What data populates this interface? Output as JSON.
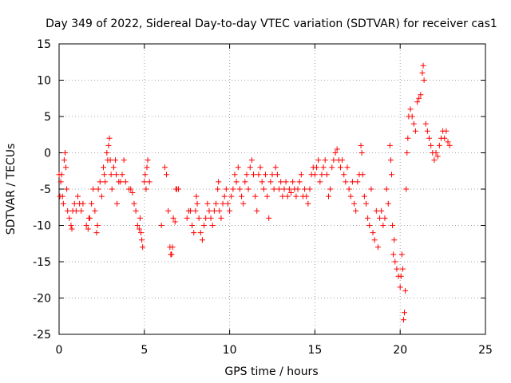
{
  "chart_data": {
    "type": "scatter",
    "title": "Day 349 of 2022, Sidereal Day-to-day VTEC variation (SDTVAR) for receiver cas1",
    "xlabel": "GPS time / hours",
    "ylabel": "SDTVAR / TECUs",
    "xlim": [
      0,
      25
    ],
    "ylim": [
      -25,
      15
    ],
    "xticks": [
      "0",
      "5",
      "10",
      "15",
      "20",
      "25"
    ],
    "yticks": [
      "15",
      "10",
      "5",
      "0",
      "-5",
      "-10",
      "-15",
      "-20",
      "-25"
    ],
    "grid": true,
    "marker": "+",
    "color": "#ff0000",
    "series": [
      {
        "name": "SDTVAR",
        "points": [
          [
            0.0,
            -3
          ],
          [
            0.05,
            -6
          ],
          [
            0.1,
            -4
          ],
          [
            0.15,
            -3
          ],
          [
            0.2,
            -6
          ],
          [
            0.25,
            -7
          ],
          [
            0.3,
            -1
          ],
          [
            0.35,
            0
          ],
          [
            0.4,
            -2
          ],
          [
            0.45,
            -5
          ],
          [
            0.5,
            -8
          ],
          [
            0.6,
            -9
          ],
          [
            0.7,
            -10
          ],
          [
            0.75,
            -10.5
          ],
          [
            0.8,
            -8
          ],
          [
            0.9,
            -7
          ],
          [
            1.0,
            -8
          ],
          [
            1.1,
            -6
          ],
          [
            1.2,
            -7
          ],
          [
            1.3,
            -8
          ],
          [
            1.4,
            -7
          ],
          [
            1.6,
            -10
          ],
          [
            1.7,
            -10.5
          ],
          [
            1.75,
            -9
          ],
          [
            1.8,
            -9
          ],
          [
            1.9,
            -7
          ],
          [
            2.0,
            -5
          ],
          [
            2.1,
            -8
          ],
          [
            2.2,
            -11
          ],
          [
            2.25,
            -10
          ],
          [
            2.3,
            -5
          ],
          [
            2.4,
            -4
          ],
          [
            2.5,
            -6
          ],
          [
            2.6,
            -2
          ],
          [
            2.65,
            -3
          ],
          [
            2.7,
            -4
          ],
          [
            2.8,
            0
          ],
          [
            2.85,
            -1
          ],
          [
            2.9,
            1
          ],
          [
            2.95,
            2
          ],
          [
            3.0,
            -1
          ],
          [
            3.05,
            -3
          ],
          [
            3.1,
            -5
          ],
          [
            3.2,
            -2
          ],
          [
            3.3,
            -1
          ],
          [
            3.35,
            -3
          ],
          [
            3.4,
            -7
          ],
          [
            3.5,
            -4
          ],
          [
            3.6,
            -4
          ],
          [
            3.7,
            -3
          ],
          [
            3.8,
            -1
          ],
          [
            3.9,
            -4
          ],
          [
            4.1,
            -5
          ],
          [
            4.2,
            -5
          ],
          [
            4.3,
            -5.5
          ],
          [
            4.4,
            -7
          ],
          [
            4.5,
            -8
          ],
          [
            4.6,
            -10
          ],
          [
            4.7,
            -10.5
          ],
          [
            4.75,
            -9
          ],
          [
            4.8,
            -11
          ],
          [
            4.85,
            -12
          ],
          [
            4.9,
            -13
          ],
          [
            5.0,
            -4
          ],
          [
            5.05,
            -3
          ],
          [
            5.1,
            -5
          ],
          [
            5.15,
            -2
          ],
          [
            5.2,
            -1
          ],
          [
            5.3,
            -4
          ],
          [
            6.0,
            -10
          ],
          [
            6.2,
            -2
          ],
          [
            6.3,
            -3
          ],
          [
            6.4,
            -8
          ],
          [
            6.5,
            -13
          ],
          [
            6.55,
            -14
          ],
          [
            6.6,
            -14
          ],
          [
            6.65,
            -13
          ],
          [
            6.7,
            -9
          ],
          [
            6.8,
            -9.5
          ],
          [
            6.85,
            -5
          ],
          [
            6.9,
            -5
          ],
          [
            7.0,
            -5
          ],
          [
            7.5,
            -9
          ],
          [
            7.6,
            -8
          ],
          [
            7.7,
            -8
          ],
          [
            7.8,
            -10
          ],
          [
            7.9,
            -11
          ],
          [
            8.0,
            -8
          ],
          [
            8.05,
            -6
          ],
          [
            8.1,
            -7
          ],
          [
            8.2,
            -9
          ],
          [
            8.3,
            -11
          ],
          [
            8.4,
            -12
          ],
          [
            8.5,
            -10
          ],
          [
            8.6,
            -9
          ],
          [
            8.7,
            -7
          ],
          [
            8.8,
            -8
          ],
          [
            8.9,
            -9
          ],
          [
            9.0,
            -10
          ],
          [
            9.1,
            -8
          ],
          [
            9.2,
            -7
          ],
          [
            9.3,
            -5
          ],
          [
            9.35,
            -4
          ],
          [
            9.4,
            -8
          ],
          [
            9.5,
            -9
          ],
          [
            9.6,
            -7
          ],
          [
            9.7,
            -6
          ],
          [
            9.8,
            -5
          ],
          [
            9.9,
            -7
          ],
          [
            10.0,
            -8
          ],
          [
            10.1,
            -6
          ],
          [
            10.2,
            -5
          ],
          [
            10.3,
            -3
          ],
          [
            10.4,
            -4
          ],
          [
            10.5,
            -2
          ],
          [
            10.6,
            -5
          ],
          [
            10.7,
            -6
          ],
          [
            10.8,
            -7
          ],
          [
            10.9,
            -4
          ],
          [
            11.0,
            -3
          ],
          [
            11.1,
            -5
          ],
          [
            11.2,
            -2
          ],
          [
            11.3,
            -1
          ],
          [
            11.4,
            -3
          ],
          [
            11.5,
            -6
          ],
          [
            11.6,
            -8
          ],
          [
            11.7,
            -3
          ],
          [
            11.8,
            -2
          ],
          [
            11.9,
            -4
          ],
          [
            12.0,
            -5
          ],
          [
            12.1,
            -3
          ],
          [
            12.2,
            -6
          ],
          [
            12.3,
            -9
          ],
          [
            12.4,
            -4
          ],
          [
            12.5,
            -3
          ],
          [
            12.6,
            -5
          ],
          [
            12.7,
            -2
          ],
          [
            12.8,
            -3
          ],
          [
            12.9,
            -5
          ],
          [
            13.0,
            -4
          ],
          [
            13.1,
            -6
          ],
          [
            13.2,
            -5
          ],
          [
            13.3,
            -4
          ],
          [
            13.4,
            -6
          ],
          [
            13.5,
            -5
          ],
          [
            13.6,
            -5.5
          ],
          [
            13.7,
            -4
          ],
          [
            13.8,
            -5
          ],
          [
            13.9,
            -6
          ],
          [
            14.0,
            -5
          ],
          [
            14.1,
            -4
          ],
          [
            14.2,
            -3
          ],
          [
            14.3,
            -6
          ],
          [
            14.4,
            -5
          ],
          [
            14.5,
            -6
          ],
          [
            14.6,
            -7
          ],
          [
            14.7,
            -5
          ],
          [
            14.8,
            -3
          ],
          [
            14.9,
            -2
          ],
          [
            15.0,
            -3
          ],
          [
            15.1,
            -2
          ],
          [
            15.2,
            -1
          ],
          [
            15.3,
            -4
          ],
          [
            15.4,
            -3
          ],
          [
            15.5,
            -2
          ],
          [
            15.6,
            -1
          ],
          [
            15.7,
            -3
          ],
          [
            15.8,
            -6
          ],
          [
            15.9,
            -5
          ],
          [
            16.0,
            -2
          ],
          [
            16.1,
            -1
          ],
          [
            16.2,
            0
          ],
          [
            16.3,
            0.5
          ],
          [
            16.4,
            -1
          ],
          [
            16.5,
            -2
          ],
          [
            16.6,
            -1
          ],
          [
            16.7,
            -3
          ],
          [
            16.8,
            -4
          ],
          [
            16.9,
            -2
          ],
          [
            17.0,
            -5
          ],
          [
            17.1,
            -6
          ],
          [
            17.2,
            -4
          ],
          [
            17.3,
            -7
          ],
          [
            17.4,
            -8
          ],
          [
            17.5,
            -4
          ],
          [
            17.6,
            -3
          ],
          [
            17.7,
            1
          ],
          [
            17.75,
            0
          ],
          [
            17.8,
            -3
          ],
          [
            17.9,
            -6
          ],
          [
            18.0,
            -7
          ],
          [
            18.1,
            -9
          ],
          [
            18.2,
            -10
          ],
          [
            18.3,
            -5
          ],
          [
            18.4,
            -11
          ],
          [
            18.5,
            -12
          ],
          [
            18.6,
            -8
          ],
          [
            18.7,
            -13
          ],
          [
            18.8,
            -9
          ],
          [
            18.9,
            -8
          ],
          [
            19.0,
            -10
          ],
          [
            19.1,
            -9
          ],
          [
            19.2,
            -5
          ],
          [
            19.3,
            -7
          ],
          [
            19.4,
            1
          ],
          [
            19.45,
            -1
          ],
          [
            19.5,
            -3
          ],
          [
            19.55,
            -10
          ],
          [
            19.6,
            -14
          ],
          [
            19.65,
            -12
          ],
          [
            19.7,
            -15
          ],
          [
            19.8,
            -16
          ],
          [
            19.9,
            -17
          ],
          [
            20.0,
            -18.5
          ],
          [
            20.05,
            -17
          ],
          [
            20.1,
            -14
          ],
          [
            20.15,
            -16
          ],
          [
            20.2,
            -23
          ],
          [
            20.25,
            -22
          ],
          [
            20.3,
            -19
          ],
          [
            20.35,
            -5
          ],
          [
            20.4,
            0
          ],
          [
            20.45,
            2
          ],
          [
            20.5,
            5
          ],
          [
            20.6,
            6
          ],
          [
            20.7,
            5
          ],
          [
            20.8,
            4
          ],
          [
            20.9,
            3
          ],
          [
            21.0,
            7
          ],
          [
            21.1,
            7.5
          ],
          [
            21.2,
            8
          ],
          [
            21.3,
            11
          ],
          [
            21.35,
            12
          ],
          [
            21.4,
            10
          ],
          [
            21.5,
            4
          ],
          [
            21.6,
            3
          ],
          [
            21.7,
            2
          ],
          [
            21.8,
            1
          ],
          [
            21.9,
            0
          ],
          [
            22.0,
            -1
          ],
          [
            22.1,
            0
          ],
          [
            22.2,
            -0.5
          ],
          [
            22.3,
            1
          ],
          [
            22.4,
            2
          ],
          [
            22.5,
            3
          ],
          [
            22.6,
            2
          ],
          [
            22.7,
            3
          ],
          [
            22.8,
            1.5
          ],
          [
            22.9,
            1
          ]
        ]
      }
    ]
  }
}
